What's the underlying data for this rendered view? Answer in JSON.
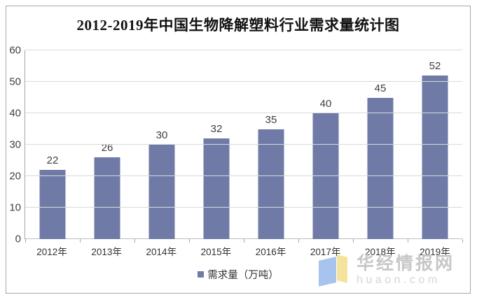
{
  "page": {
    "title": "2012-2019年中国生物降解塑料行业需求量统计图"
  },
  "chart_data": {
    "type": "bar",
    "title": "2012-2019年中国生物降解塑料行业需求量统计图",
    "categories": [
      "2012年",
      "2013年",
      "2014年",
      "2015年",
      "2016年",
      "2017年",
      "2018年",
      "2019年"
    ],
    "values": [
      22,
      26,
      30,
      32,
      35,
      40,
      45,
      52
    ],
    "series_name": "需求量（万吨）",
    "xlabel": "",
    "ylabel": "",
    "ylim": [
      0,
      60
    ],
    "yticks": [
      0,
      10,
      20,
      30,
      40,
      50,
      60
    ],
    "grid": true,
    "show_value_labels": true,
    "legend_position": "bottom"
  },
  "legend": {
    "label": "需求量（万吨）"
  },
  "watermark": {
    "site_name": "华经情报网",
    "site_domain": "huaon.com"
  },
  "colors": {
    "bar": "#6f7ba6",
    "gridline": "#d9d9d9",
    "axis": "#a6a6a6",
    "frame_border": "#a6a6a6",
    "label_text": "#3d3d3d",
    "watermark_text": "#c7c7c7",
    "watermark_domain": "#d5d5d5",
    "logo_blue": "#a7c4ef",
    "logo_yellow": "#f6e39b"
  }
}
